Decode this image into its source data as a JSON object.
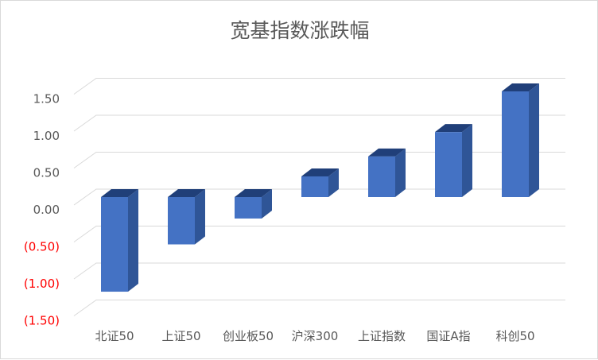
{
  "chart_data": {
    "type": "bar",
    "title": "宽基指数涨跌幅",
    "categories": [
      "北证50",
      "上证50",
      "创业板50",
      "沪深300",
      "上证指数",
      "国证A指",
      "科创50"
    ],
    "values": [
      -1.28,
      -0.64,
      -0.29,
      0.28,
      0.55,
      0.88,
      1.43
    ],
    "ylim": [
      -1.5,
      1.5
    ],
    "yticks": [
      1.5,
      1.0,
      0.5,
      0.0,
      -0.5,
      -1.0,
      -1.5
    ],
    "ytick_labels": [
      "1.50",
      "1.00",
      "0.50",
      "0.00",
      "(0.50)",
      "(1.00)",
      "(1.50)"
    ],
    "grid": true,
    "xlabel": "",
    "ylabel": "",
    "colors": {
      "bar_front": "#4472c4",
      "bar_side": "#2f5597",
      "bar_top": "#203f79",
      "gridline": "#d9d9d9",
      "positive_label": "#595959",
      "negative_label": "#ff0000",
      "title": "#595959"
    }
  }
}
